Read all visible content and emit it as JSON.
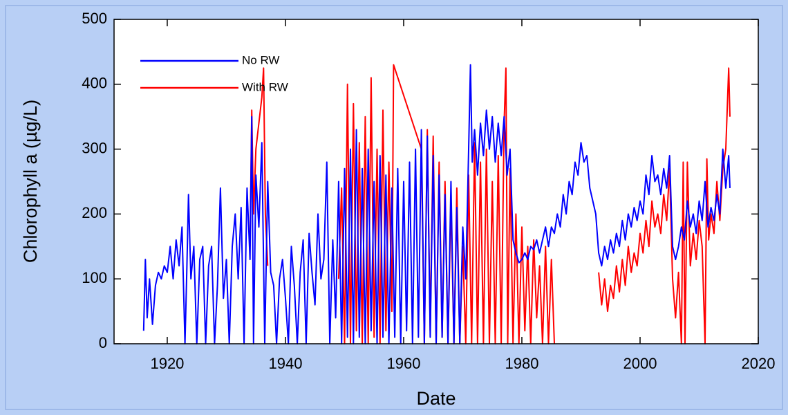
{
  "chart_data": {
    "type": "line",
    "ylabel": "Chlorophyll a (µg/L)",
    "xlabel": "Date",
    "xlim": [
      1911,
      2020
    ],
    "xticks": [
      1920,
      1940,
      1960,
      1980,
      2000,
      2020
    ],
    "ylim": [
      0,
      500
    ],
    "yticks": [
      0,
      100,
      200,
      300,
      400,
      500
    ],
    "legend": "upper left",
    "series": [
      {
        "name": "With RW",
        "color": "#ff0000",
        "x": [
          1934,
          1934.3,
          1934.6,
          1935,
          1936,
          1936.3,
          1936.6,
          1937,
          1937.5,
          1949,
          1949.5,
          1950,
          1950.5,
          1951,
          1951.5,
          1952,
          1952.5,
          1953,
          1953.5,
          1954,
          1954.5,
          1955,
          1955.5,
          1956,
          1956.5,
          1957,
          1957.5,
          1958,
          1958.3,
          1963,
          1963.5,
          1964,
          1964.5,
          1965,
          1965.5,
          1966,
          1966.5,
          1967,
          1967.5,
          1968,
          1968.5,
          1969,
          1969.5,
          1970,
          1970.5,
          1971,
          1971.5,
          1972,
          1972.5,
          1973,
          1973.5,
          1974,
          1974.5,
          1975,
          1975.5,
          1976,
          1976.5,
          1977,
          1977.3,
          1977.6,
          1978,
          1978.5,
          1979,
          1979.5,
          1980,
          1980.5,
          1981,
          1981.5,
          1982,
          1982.5,
          1983,
          1983.5,
          1984,
          1984.5,
          1985,
          1985.5,
          1988,
          1993,
          1993.5,
          1994,
          1994.5,
          1995,
          1995.5,
          1996,
          1996.5,
          1997,
          1997.5,
          1998,
          1998.5,
          1999,
          1999.5,
          2000,
          2000.5,
          2001,
          2001.5,
          2002,
          2002.5,
          2003,
          2003.5,
          2004,
          2004.5,
          2005,
          2005.5,
          2006,
          2006.5,
          2007,
          2007.3,
          2007.6,
          2008,
          2008.5,
          2009,
          2009.5,
          2010,
          2010.5,
          2011,
          2011.3,
          2011.6,
          2012,
          2012.5,
          2013,
          2013.5,
          2014,
          2014.5,
          2015,
          2015.2
        ],
        "values": [
          150,
          360,
          200,
          300,
          380,
          425,
          200,
          120,
          null,
          100,
          240,
          0,
          400,
          0,
          370,
          20,
          310,
          0,
          350,
          0,
          410,
          10,
          300,
          0,
          360,
          20,
          280,
          50,
          430,
          300,
          0,
          330,
          20,
          320,
          0,
          280,
          10,
          250,
          0,
          220,
          0,
          240,
          0,
          150,
          0,
          260,
          0,
          310,
          0,
          280,
          0,
          300,
          0,
          250,
          0,
          290,
          0,
          340,
          425,
          0,
          270,
          0,
          200,
          0,
          180,
          20,
          150,
          0,
          160,
          40,
          120,
          0,
          150,
          0,
          130,
          0,
          null,
          110,
          60,
          100,
          50,
          90,
          70,
          120,
          80,
          130,
          90,
          150,
          110,
          140,
          120,
          170,
          140,
          190,
          150,
          220,
          180,
          200,
          170,
          230,
          190,
          270,
          100,
          40,
          110,
          0,
          280,
          0,
          280,
          120,
          170,
          130,
          190,
          150,
          0,
          285,
          160,
          200,
          170,
          250,
          190,
          270,
          300,
          425,
          350
        ]
      },
      {
        "name": "No RW",
        "color": "#0000ff",
        "x": [
          1916,
          1916.3,
          1916.6,
          1917,
          1917.5,
          1918,
          1918.5,
          1919,
          1919.5,
          1920,
          1920.5,
          1921,
          1921.5,
          1922,
          1922.5,
          1923,
          1923.3,
          1923.6,
          1924,
          1924.5,
          1925,
          1925.5,
          1926,
          1926.5,
          1927,
          1927.5,
          1928,
          1928.5,
          1929,
          1929.5,
          1930,
          1930.5,
          1931,
          1931.5,
          1932,
          1932.5,
          1933,
          1933.5,
          1934,
          1934.3,
          1934.6,
          1935,
          1935.5,
          1936,
          1936.5,
          1937,
          1937.5,
          1938,
          1938.5,
          1939,
          1939.5,
          1940,
          1940.5,
          1941,
          1941.5,
          1942,
          1942.5,
          1943,
          1943.5,
          1944,
          1944.5,
          1945,
          1945.5,
          1946,
          1946.5,
          1947,
          1947.5,
          1948,
          1948.5,
          1949,
          1949.5,
          1950,
          1950.5,
          1951,
          1951.5,
          1952,
          1952.5,
          1953,
          1953.5,
          1954,
          1954.5,
          1955,
          1955.5,
          1956,
          1956.5,
          1957,
          1957.5,
          1958,
          1958.5,
          1959,
          1959.5,
          1960,
          1960.5,
          1961,
          1961.5,
          1962,
          1962.5,
          1963,
          1963.5,
          1964,
          1964.5,
          1965,
          1965.5,
          1966,
          1966.5,
          1967,
          1967.5,
          1968,
          1968.5,
          1969,
          1969.5,
          1970,
          1970.5,
          1971,
          1971.3,
          1971.6,
          1972,
          1972.5,
          1973,
          1973.5,
          1974,
          1974.5,
          1975,
          1975.5,
          1976,
          1976.5,
          1977,
          1977.5,
          1978,
          1978.5,
          1979,
          1979.5,
          1980,
          1980.5,
          1981,
          1981.5,
          1982,
          1982.5,
          1983,
          1983.5,
          1984,
          1984.5,
          1985,
          1985.5,
          1986,
          1986.5,
          1987,
          1987.5,
          1988,
          1988.5,
          1989,
          1989.5,
          1990,
          1990.5,
          1991,
          1991.5,
          1992,
          1992.5,
          1993,
          1993.5,
          1994,
          1994.5,
          1995,
          1995.5,
          1996,
          1996.5,
          1997,
          1997.5,
          1998,
          1998.5,
          1999,
          1999.5,
          2000,
          2000.5,
          2001,
          2001.5,
          2002,
          2002.5,
          2003,
          2003.5,
          2004,
          2004.5,
          2005,
          2005.5,
          2006,
          2006.5,
          2007,
          2007.5,
          2008,
          2008.5,
          2009,
          2009.5,
          2010,
          2010.5,
          2011,
          2011.5,
          2012,
          2012.5,
          2013,
          2013.5,
          2014,
          2014.5,
          2015,
          2015.2
        ],
        "values": [
          20,
          130,
          40,
          100,
          30,
          90,
          110,
          100,
          120,
          110,
          150,
          100,
          160,
          120,
          180,
          0,
          110,
          230,
          100,
          150,
          0,
          130,
          150,
          0,
          120,
          150,
          0,
          90,
          240,
          70,
          130,
          0,
          150,
          200,
          100,
          210,
          0,
          240,
          130,
          350,
          0,
          260,
          180,
          310,
          0,
          250,
          110,
          90,
          0,
          100,
          130,
          70,
          0,
          150,
          90,
          0,
          110,
          160,
          0,
          170,
          110,
          60,
          200,
          100,
          130,
          280,
          0,
          160,
          40,
          250,
          0,
          270,
          10,
          300,
          0,
          330,
          10,
          270,
          0,
          300,
          20,
          250,
          0,
          290,
          10,
          260,
          0,
          240,
          10,
          270,
          0,
          250,
          20,
          280,
          0,
          300,
          10,
          330,
          0,
          320,
          10,
          290,
          0,
          260,
          10,
          230,
          0,
          250,
          0,
          210,
          0,
          180,
          100,
          300,
          430,
          280,
          330,
          260,
          340,
          290,
          360,
          300,
          350,
          280,
          340,
          290,
          350,
          260,
          300,
          160,
          140,
          125,
          130,
          140,
          130,
          150,
          145,
          160,
          140,
          160,
          180,
          150,
          180,
          170,
          200,
          180,
          230,
          200,
          250,
          230,
          280,
          260,
          310,
          280,
          290,
          240,
          220,
          200,
          140,
          120,
          150,
          130,
          160,
          140,
          170,
          150,
          190,
          160,
          200,
          180,
          210,
          190,
          220,
          200,
          260,
          230,
          290,
          250,
          260,
          230,
          270,
          240,
          290,
          150,
          130,
          150,
          180,
          160,
          220,
          180,
          200,
          170,
          220,
          190,
          250,
          180,
          210,
          190,
          230,
          200,
          300,
          240,
          290,
          240
        ]
      }
    ]
  }
}
